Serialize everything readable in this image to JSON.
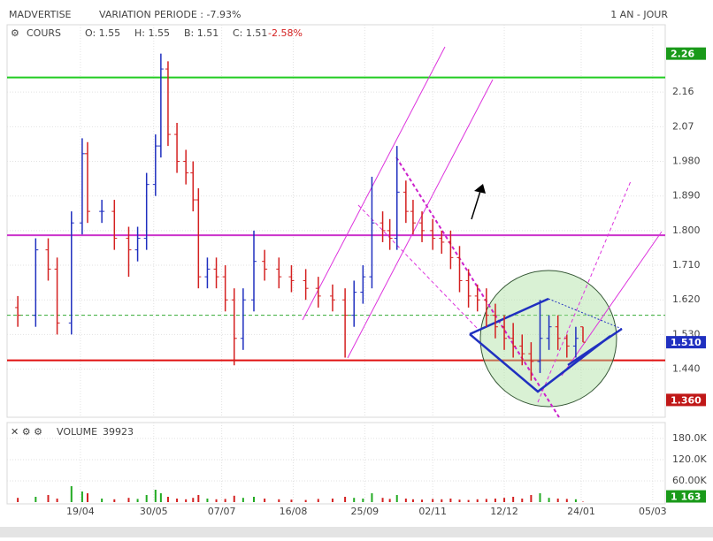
{
  "chart_data": {
    "type": "ohlc",
    "title": "MADVERTISE",
    "subtitle": "VARIATION PERIODE : -7.93%",
    "period": "1 AN - JOUR",
    "legend": {
      "name": "COURS",
      "open": "O: 1.55",
      "high": "H: 1.55",
      "low": "B: 1.51",
      "close": "C: 1.51",
      "change": "-2.58%"
    },
    "up_color": "#1f2fbf",
    "down_color": "#d42020",
    "x": [
      6,
      16,
      23,
      28,
      36,
      42,
      45,
      53,
      60,
      68,
      73,
      78,
      83,
      86,
      90,
      95,
      100,
      104,
      107,
      112,
      117,
      122,
      127,
      132,
      138,
      144,
      152,
      159,
      167,
      174,
      182,
      189,
      194,
      199,
      204,
      210,
      214,
      218,
      223,
      227,
      232,
      238,
      243,
      248,
      253,
      258,
      263,
      268,
      273,
      278,
      283,
      288,
      293,
      298,
      303,
      308,
      313,
      318,
      322
    ],
    "open": [
      1.6,
      1.58,
      1.75,
      1.7,
      1.56,
      1.82,
      2.0,
      1.85,
      1.85,
      1.78,
      1.75,
      1.78,
      1.92,
      2.02,
      2.22,
      2.05,
      1.98,
      1.95,
      1.88,
      1.68,
      1.7,
      1.68,
      1.62,
      1.52,
      1.62,
      1.72,
      1.7,
      1.68,
      1.67,
      1.65,
      1.63,
      1.62,
      1.58,
      1.64,
      1.68,
      1.82,
      1.8,
      1.78,
      1.9,
      1.85,
      1.82,
      1.8,
      1.78,
      1.77,
      1.73,
      1.67,
      1.63,
      1.62,
      1.58,
      1.55,
      1.52,
      1.5,
      1.48,
      1.46,
      1.52,
      1.55,
      1.52,
      1.5,
      1.55
    ],
    "high": [
      1.63,
      1.78,
      1.78,
      1.73,
      1.85,
      2.04,
      2.03,
      1.88,
      1.88,
      1.81,
      1.81,
      1.95,
      2.05,
      2.26,
      2.24,
      2.08,
      2.01,
      1.98,
      1.91,
      1.73,
      1.73,
      1.71,
      1.65,
      1.65,
      1.8,
      1.75,
      1.73,
      1.71,
      1.7,
      1.68,
      1.66,
      1.65,
      1.67,
      1.71,
      1.94,
      1.85,
      1.83,
      2.02,
      1.93,
      1.88,
      1.85,
      1.83,
      1.8,
      1.8,
      1.76,
      1.7,
      1.66,
      1.65,
      1.61,
      1.58,
      1.56,
      1.53,
      1.51,
      1.62,
      1.58,
      1.58,
      1.53,
      1.55,
      1.55
    ],
    "low": [
      1.55,
      1.55,
      1.67,
      1.53,
      1.53,
      1.79,
      1.82,
      1.82,
      1.75,
      1.68,
      1.72,
      1.75,
      1.89,
      1.99,
      2.02,
      1.95,
      1.92,
      1.85,
      1.65,
      1.65,
      1.65,
      1.59,
      1.45,
      1.49,
      1.59,
      1.67,
      1.65,
      1.64,
      1.62,
      1.6,
      1.59,
      1.47,
      1.55,
      1.61,
      1.65,
      1.77,
      1.75,
      1.75,
      1.82,
      1.79,
      1.77,
      1.75,
      1.74,
      1.7,
      1.64,
      1.6,
      1.59,
      1.55,
      1.52,
      1.49,
      1.47,
      1.45,
      1.41,
      1.43,
      1.49,
      1.49,
      1.47,
      1.47,
      1.51
    ],
    "close": [
      1.58,
      1.75,
      1.7,
      1.56,
      1.82,
      2.0,
      1.85,
      1.85,
      1.78,
      1.75,
      1.78,
      1.92,
      2.02,
      2.22,
      2.05,
      1.98,
      1.95,
      1.88,
      1.68,
      1.7,
      1.68,
      1.62,
      1.52,
      1.62,
      1.72,
      1.7,
      1.68,
      1.67,
      1.65,
      1.63,
      1.62,
      1.58,
      1.64,
      1.68,
      1.82,
      1.8,
      1.78,
      1.9,
      1.85,
      1.82,
      1.8,
      1.78,
      1.77,
      1.73,
      1.67,
      1.63,
      1.62,
      1.58,
      1.55,
      1.52,
      1.5,
      1.48,
      1.46,
      1.52,
      1.55,
      1.52,
      1.5,
      1.52,
      1.51
    ],
    "volume": [
      12000,
      15000,
      20000,
      10000,
      45000,
      30000,
      25000,
      10000,
      8000,
      12000,
      9000,
      20000,
      35000,
      25000,
      15000,
      10000,
      8000,
      12000,
      20000,
      10000,
      8000,
      9000,
      18000,
      12000,
      15000,
      10000,
      8000,
      7000,
      6000,
      9000,
      10000,
      15000,
      12000,
      10000,
      25000,
      12000,
      9000,
      20000,
      10000,
      8000,
      7000,
      9000,
      8000,
      10000,
      7000,
      6000,
      8000,
      9000,
      10000,
      12000,
      15000,
      10000,
      20000,
      25000,
      12000,
      10000,
      9000,
      8000,
      1163
    ],
    "xlim": [
      0,
      368
    ],
    "xticks": [
      {
        "value": 41,
        "label": "19/04"
      },
      {
        "value": 82,
        "label": "30/05"
      },
      {
        "value": 120,
        "label": "07/07"
      },
      {
        "value": 160,
        "label": "16/08"
      },
      {
        "value": 200,
        "label": "25/09"
      },
      {
        "value": 238,
        "label": "02/11"
      },
      {
        "value": 278,
        "label": "12/12"
      },
      {
        "value": 321,
        "label": "24/01"
      },
      {
        "value": 361,
        "label": "05/03"
      }
    ],
    "ylim": [
      1.315,
      2.335
    ],
    "yticks": [
      2.16,
      2.07,
      {
        "value": 1.98,
        "label": "1.980"
      },
      {
        "value": 1.89,
        "label": "1.890"
      },
      {
        "value": 1.8,
        "label": "1.800"
      },
      {
        "value": 1.71,
        "label": "1.710"
      },
      {
        "value": 1.62,
        "label": "1.620"
      },
      {
        "value": 1.53,
        "label": "1.530"
      },
      {
        "value": 1.44,
        "label": "1.440"
      }
    ],
    "levels": [
      {
        "value": 2.198,
        "color": "#22cc22",
        "dashed": false
      },
      {
        "value": 1.788,
        "color": "#cc33cc",
        "dashed": false
      },
      {
        "value": 1.463,
        "color": "#e01010",
        "dashed": false
      },
      {
        "value": 1.58,
        "color": "#33aa33",
        "dashed": true
      }
    ],
    "markers": [
      {
        "label": "2.26",
        "value": 2.26,
        "color": "#1a9a1a"
      },
      {
        "label": "1.510",
        "value": 1.51,
        "color": "#2030c0"
      },
      {
        "label": "1.360",
        "value": 1.36,
        "color": "#c01818"
      }
    ],
    "volume_title": "VOLUME",
    "volume_value": "39923",
    "volume_ylim": [
      0,
      225000
    ],
    "volume_yticks": [
      {
        "value": 180000,
        "label": "180.0K"
      },
      {
        "value": 120000,
        "label": "120.0K"
      },
      {
        "value": 60000,
        "label": "60.00K"
      }
    ],
    "volume_marker": {
      "label": "1 163",
      "value": 1163,
      "color": "#1a9a1a"
    }
  }
}
